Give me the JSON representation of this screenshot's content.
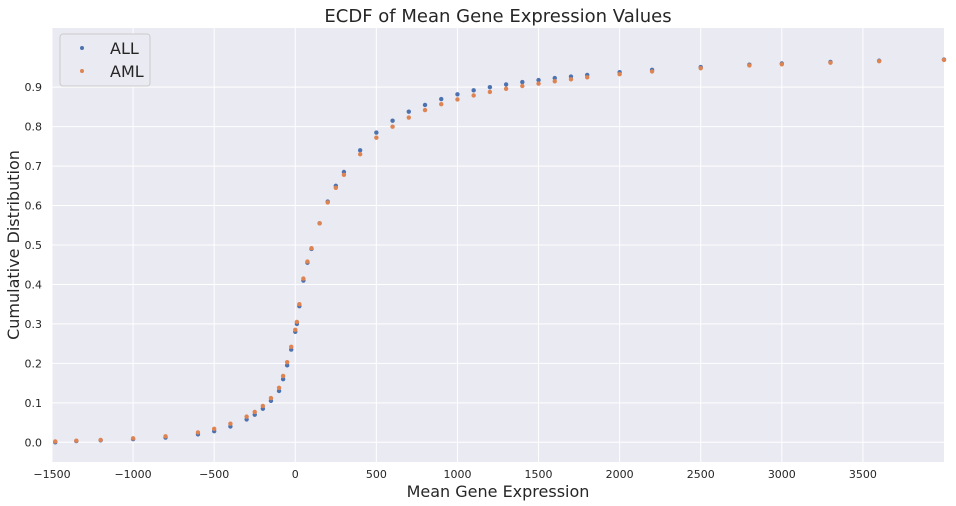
{
  "chart_data": {
    "type": "scatter",
    "title": "ECDF of Mean Gene Expression Values",
    "xlabel": "Mean Gene Expression",
    "ylabel": "Cumulative Distribution",
    "xlim": [
      -1500,
      4000
    ],
    "ylim": [
      -0.05,
      1.05
    ],
    "x_ticks": [
      -1500,
      -1000,
      -500,
      0,
      500,
      1000,
      1500,
      2000,
      2500,
      3000,
      3500
    ],
    "y_ticks": [
      0.0,
      0.1,
      0.2,
      0.3,
      0.4,
      0.5,
      0.6,
      0.7,
      0.8,
      0.9
    ],
    "grid": true,
    "legend_position": "top-left",
    "series": [
      {
        "name": "ALL",
        "color": "#4c72b0",
        "x": [
          -1480,
          -1350,
          -1200,
          -1000,
          -800,
          -600,
          -500,
          -400,
          -300,
          -250,
          -200,
          -150,
          -100,
          -75,
          -50,
          -25,
          0,
          10,
          25,
          50,
          75,
          100,
          150,
          200,
          250,
          300,
          400,
          500,
          600,
          700,
          800,
          900,
          1000,
          1100,
          1200,
          1300,
          1400,
          1500,
          1600,
          1700,
          1800,
          2000,
          2200,
          2500,
          2800,
          3000,
          3300,
          3600,
          4000
        ],
        "y": [
          0.0,
          0.003,
          0.005,
          0.008,
          0.012,
          0.02,
          0.028,
          0.04,
          0.058,
          0.07,
          0.085,
          0.105,
          0.13,
          0.16,
          0.195,
          0.235,
          0.28,
          0.3,
          0.345,
          0.41,
          0.455,
          0.49,
          0.555,
          0.61,
          0.65,
          0.685,
          0.74,
          0.785,
          0.815,
          0.838,
          0.855,
          0.87,
          0.882,
          0.892,
          0.9,
          0.907,
          0.913,
          0.918,
          0.923,
          0.927,
          0.931,
          0.938,
          0.944,
          0.951,
          0.957,
          0.96,
          0.964,
          0.967,
          0.97
        ]
      },
      {
        "name": "AML",
        "color": "#dd8452",
        "x": [
          -1480,
          -1350,
          -1200,
          -1000,
          -800,
          -600,
          -500,
          -400,
          -300,
          -250,
          -200,
          -150,
          -100,
          -75,
          -50,
          -25,
          0,
          10,
          25,
          50,
          75,
          100,
          150,
          200,
          250,
          300,
          400,
          500,
          600,
          700,
          800,
          900,
          1000,
          1100,
          1200,
          1300,
          1400,
          1500,
          1600,
          1700,
          1800,
          2000,
          2200,
          2500,
          2800,
          3000,
          3300,
          3600,
          4000
        ],
        "y": [
          0.002,
          0.004,
          0.006,
          0.01,
          0.015,
          0.025,
          0.034,
          0.047,
          0.065,
          0.077,
          0.092,
          0.112,
          0.138,
          0.168,
          0.203,
          0.242,
          0.285,
          0.305,
          0.35,
          0.415,
          0.458,
          0.492,
          0.555,
          0.608,
          0.645,
          0.678,
          0.73,
          0.772,
          0.8,
          0.823,
          0.842,
          0.857,
          0.869,
          0.879,
          0.888,
          0.896,
          0.903,
          0.909,
          0.915,
          0.92,
          0.925,
          0.933,
          0.94,
          0.948,
          0.955,
          0.958,
          0.962,
          0.966,
          0.969
        ]
      }
    ]
  }
}
